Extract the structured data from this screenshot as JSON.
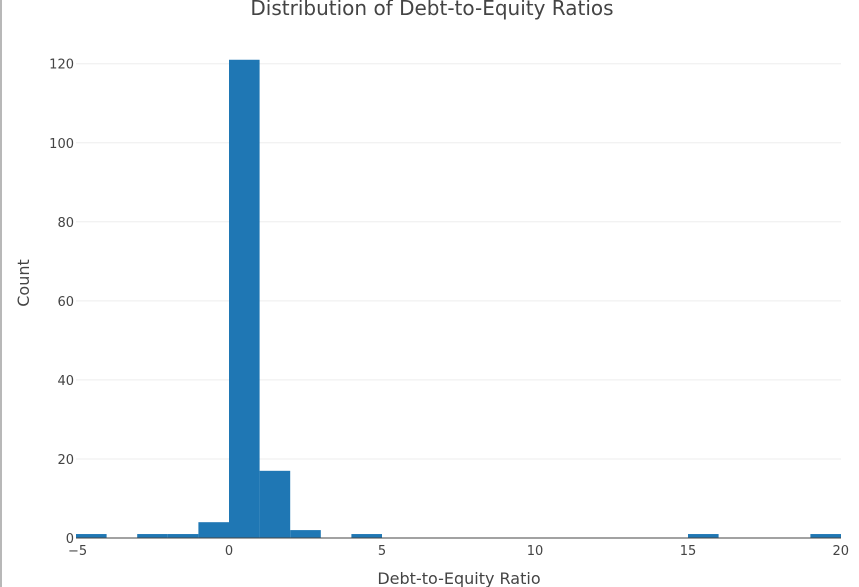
{
  "chart_data": {
    "type": "bar",
    "title": "Distribution of Debt-to-Equity Ratios",
    "xlabel": "Debt-to-Equity Ratio",
    "ylabel": "Count",
    "xlim": [
      -5,
      20
    ],
    "ylim": [
      0,
      126
    ],
    "x_ticks": [
      -5,
      0,
      5,
      10,
      15,
      20
    ],
    "x_tick_labels": [
      "−5",
      "0",
      "5",
      "10",
      "15",
      "20"
    ],
    "y_ticks": [
      0,
      20,
      40,
      60,
      80,
      100,
      120
    ],
    "y_tick_labels": [
      "0",
      "20",
      "40",
      "60",
      "80",
      "100",
      "120"
    ],
    "grid": true,
    "legend": "none",
    "bar_color": "#1f77b4",
    "bins": [
      {
        "start": -5,
        "end": -4,
        "count": 1
      },
      {
        "start": -3,
        "end": -2,
        "count": 1
      },
      {
        "start": -2,
        "end": -1,
        "count": 1
      },
      {
        "start": -1,
        "end": 0,
        "count": 4
      },
      {
        "start": 0,
        "end": 1,
        "count": 121
      },
      {
        "start": 1,
        "end": 2,
        "count": 17
      },
      {
        "start": 2,
        "end": 3,
        "count": 2
      },
      {
        "start": 4,
        "end": 5,
        "count": 1
      },
      {
        "start": 15,
        "end": 16,
        "count": 1
      },
      {
        "start": 19,
        "end": 20,
        "count": 1
      }
    ]
  }
}
